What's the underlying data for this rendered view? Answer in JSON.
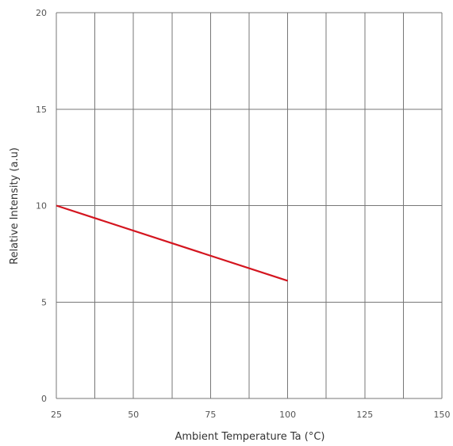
{
  "chart_data": {
    "type": "line",
    "title": "",
    "xlabel": "Ambient Temperature Ta (°C)",
    "ylabel": "Relative Intensity (a.u)",
    "xlim": [
      25,
      150
    ],
    "ylim": [
      0,
      20
    ],
    "x_ticks": [
      25,
      50,
      75,
      100,
      125,
      150
    ],
    "y_ticks": [
      0,
      5,
      10,
      15,
      20
    ],
    "x_gridlines": [
      25,
      37.5,
      50,
      62.5,
      75,
      87.5,
      100,
      112.5,
      125,
      137.5,
      150
    ],
    "y_gridlines": [
      0,
      5,
      10,
      15,
      20
    ],
    "grid": true,
    "legend": "none",
    "series": [
      {
        "x": [
          25,
          100
        ],
        "y": [
          10,
          6.1
        ],
        "color": "#d4151f"
      }
    ],
    "grid_color": "#777777",
    "tick_label_color": "#555555",
    "axis_title_color": "#333333"
  }
}
